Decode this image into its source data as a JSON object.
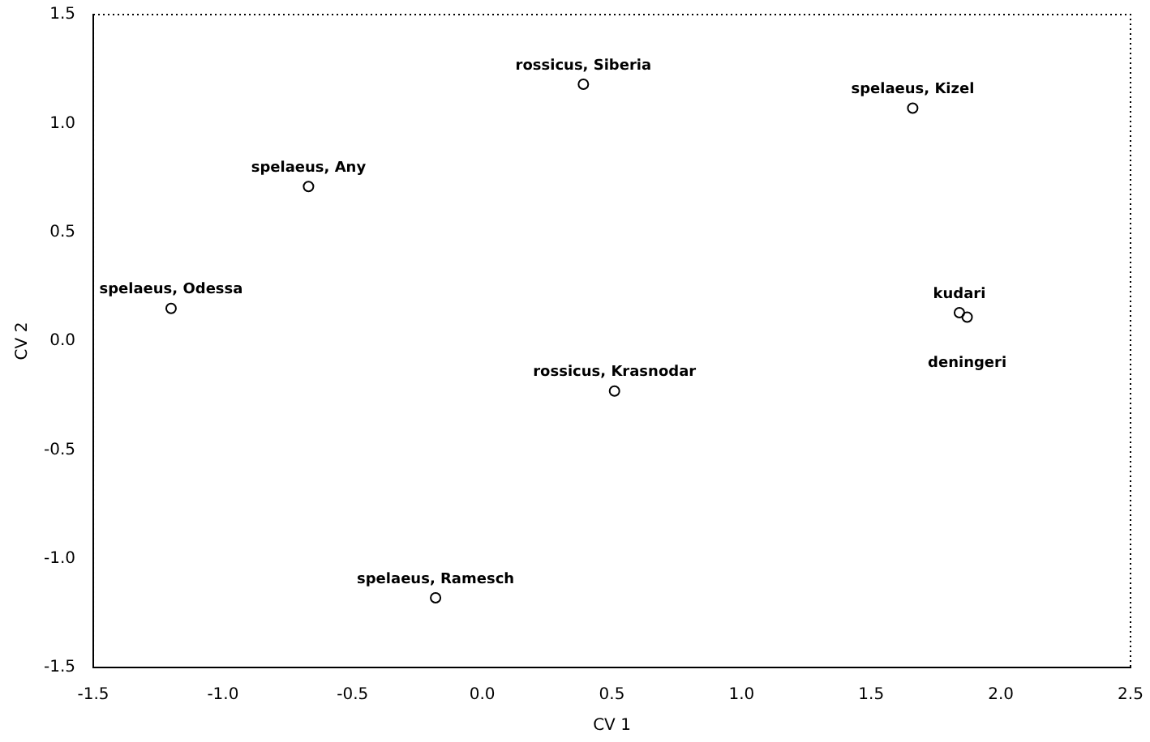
{
  "chart_data": {
    "type": "scatter",
    "xlabel": "CV 1",
    "ylabel": "CV 2",
    "x": [
      0.39,
      1.66,
      -0.67,
      -1.2,
      1.84,
      1.87,
      0.51,
      -0.18
    ],
    "values": [
      1.18,
      1.07,
      0.71,
      0.15,
      0.13,
      0.11,
      -0.23,
      -1.18
    ],
    "color": "#000000",
    "marker": "circle",
    "xlim": [
      -1.5,
      2.5
    ],
    "xticks": [
      -1.5,
      {
        "value": -1,
        "label": "-1.0"
      },
      -0.5,
      {
        "value": 0,
        "label": "0.0"
      },
      0.5,
      {
        "value": 1,
        "label": "1.0"
      },
      1.5,
      {
        "value": 2,
        "label": "2.0"
      },
      2.5
    ],
    "ylim": [
      -1.5,
      1.5
    ],
    "yticks": [
      -1.5,
      {
        "value": -1,
        "label": "-1.0"
      },
      -0.5,
      {
        "value": 0,
        "label": "0.0"
      },
      0.5,
      {
        "value": 1,
        "label": "1.0"
      },
      1.5
    ],
    "grid": false,
    "legend": false,
    "annotations": [
      {
        "text": "rossicus, Siberia",
        "x": 0.39,
        "y": 1.18
      },
      {
        "text": "spelaeus, Kizel",
        "x": 1.66,
        "y": 1.07
      },
      {
        "text": "spelaeus, Any",
        "x": -0.67,
        "y": 0.71
      },
      {
        "text": "spelaeus, Odessa",
        "x": -1.2,
        "y": 0.15
      },
      {
        "text": "kudari",
        "x": 1.84,
        "y": 0.13
      },
      {
        "text": "deningeri",
        "x": 1.87,
        "y": 0.11
      },
      {
        "text": "rossicus, Krasnodar",
        "x": 0.51,
        "y": -0.23
      },
      {
        "text": "spelaeus, Ramesch",
        "x": -0.18,
        "y": -1.18
      }
    ]
  }
}
